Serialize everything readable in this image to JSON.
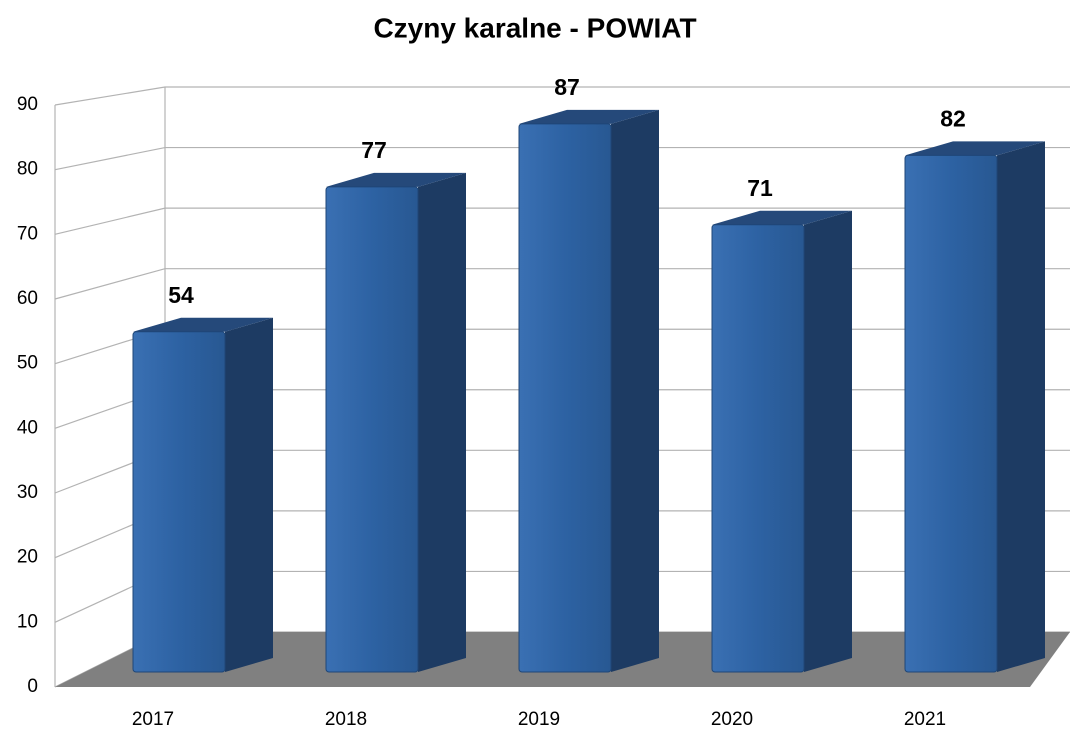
{
  "chart_data": {
    "type": "bar",
    "title": "Czyny karalne - POWIAT",
    "categories": [
      "2017",
      "2018",
      "2019",
      "2020",
      "2021"
    ],
    "values": [
      54,
      77,
      87,
      71,
      82
    ],
    "color": "#2d62a3",
    "ylim": [
      0,
      90
    ],
    "yticks": [
      0,
      10,
      20,
      30,
      40,
      50,
      60,
      70,
      80,
      90
    ],
    "grid": true,
    "data_labels": true
  }
}
